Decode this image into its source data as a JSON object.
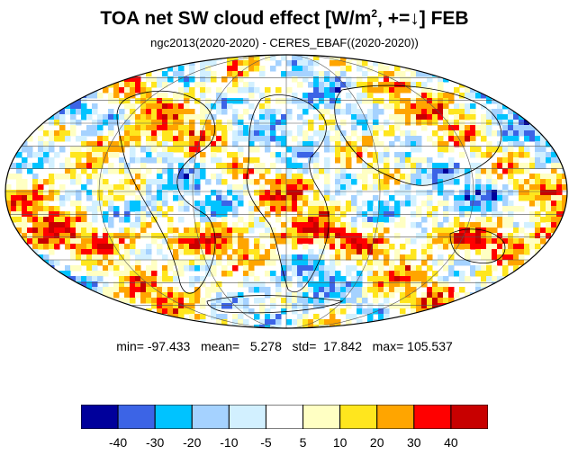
{
  "title": {
    "main": "TOA net SW cloud effect [W/m",
    "sup": "2",
    "rest": ", +=↓]  FEB"
  },
  "subtitle": "ngc2013(2020-2020) - CERES_EBAF((2020-2020))",
  "stats": {
    "text": "min= -97.433   mean=   5.278   std=  17.842   max= 105.537"
  },
  "colorbar": {
    "colors": [
      "#00009b",
      "#3c64e6",
      "#00c3ff",
      "#a5d2ff",
      "#d2f0ff",
      "#ffffff",
      "#ffffc3",
      "#ffe61e",
      "#ffa500",
      "#ff0000",
      "#c80000"
    ],
    "labels": [
      "-40",
      "-30",
      "-20",
      "-10",
      "-5",
      "5",
      "10",
      "20",
      "30",
      "40"
    ]
  },
  "map": {
    "projection": "mollweide",
    "central_longitude": 0,
    "ocean_pattern": "noisy colored cells of cloud effect anomalies"
  }
}
